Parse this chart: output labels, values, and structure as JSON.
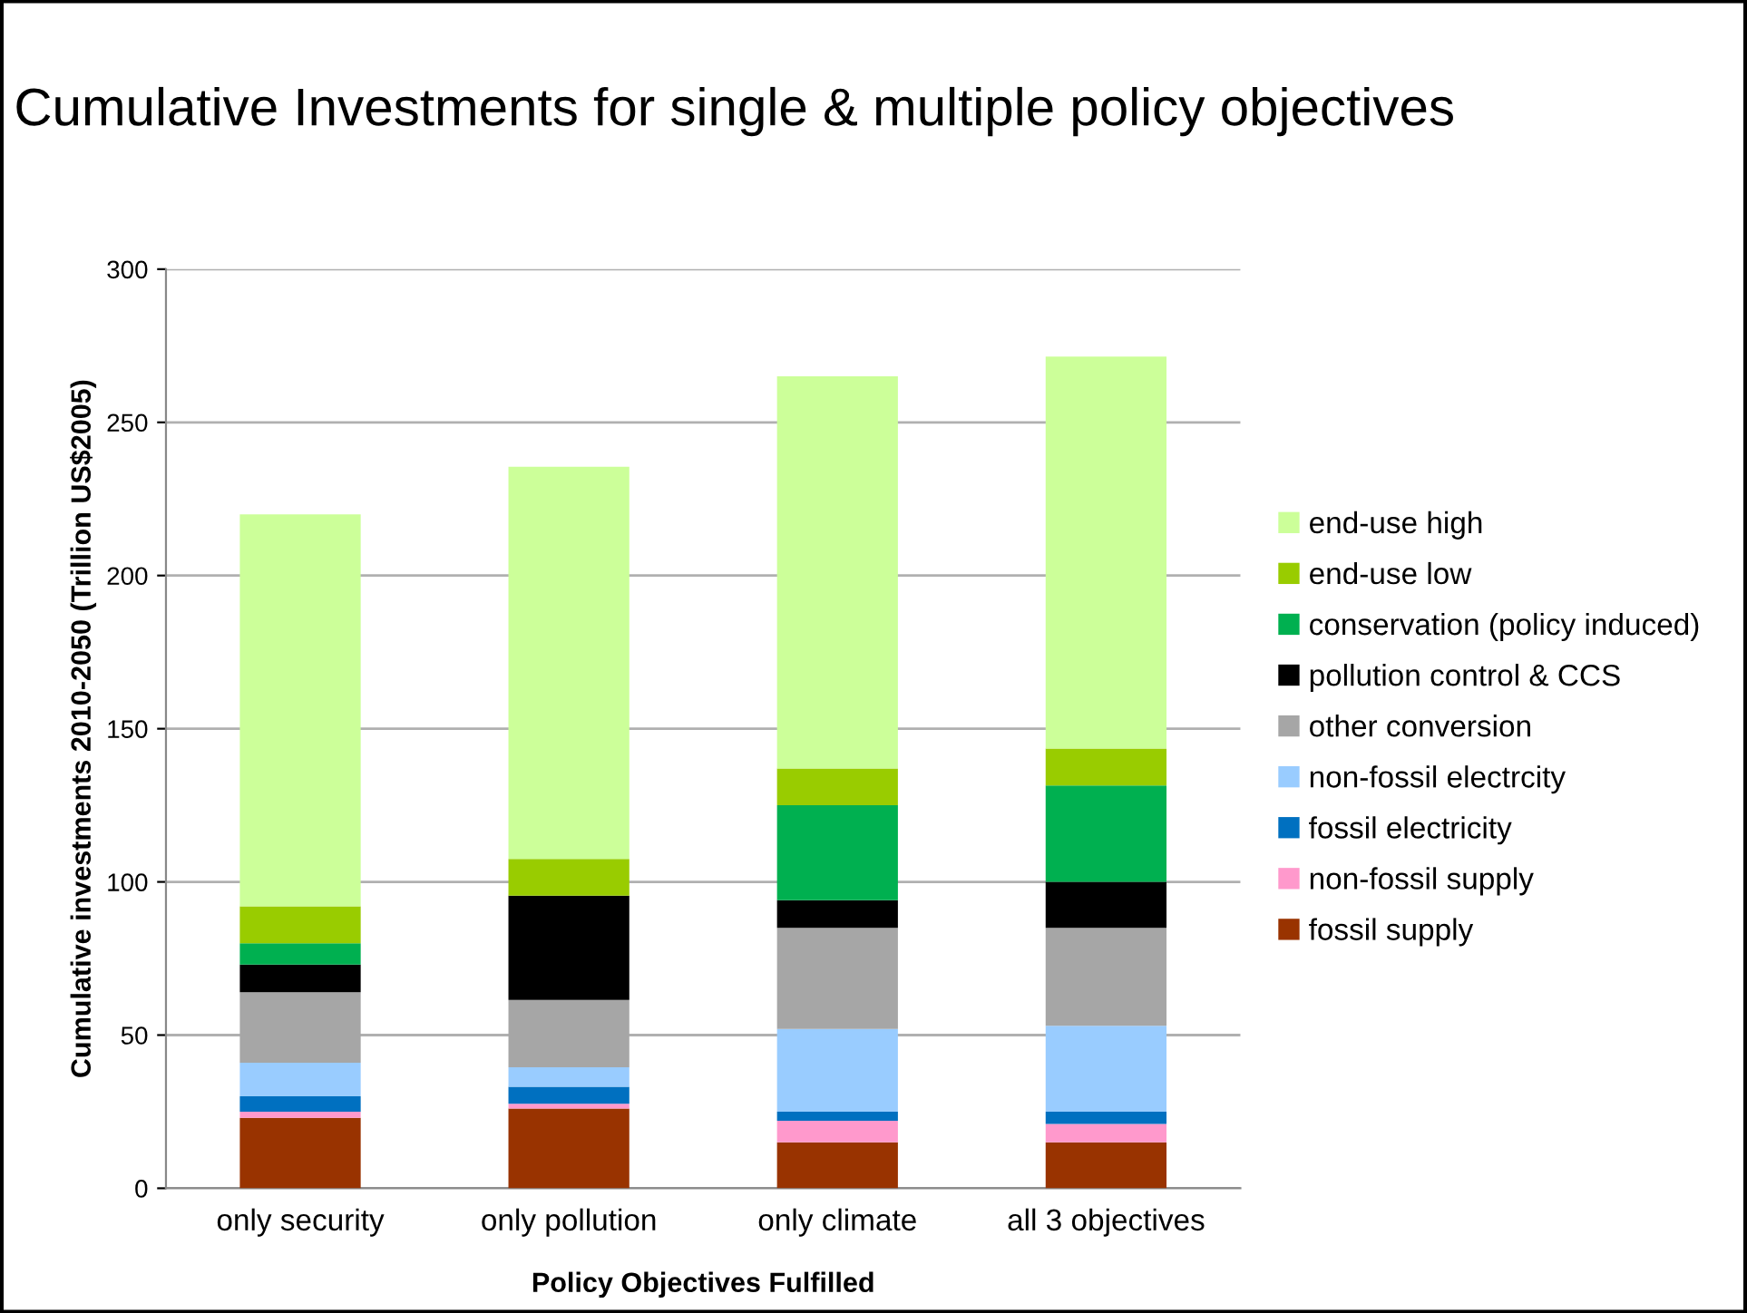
{
  "chart_data": {
    "type": "bar",
    "stacked": true,
    "title": "Cumulative Investments for single & multiple policy objectives",
    "xlabel": "Policy Objectives Fulfilled",
    "ylabel": "Cumulative investments 2010-2050 (Trillion US$2005)",
    "categories": [
      "only security",
      "only pollution",
      "only climate",
      "all 3 objectives"
    ],
    "series": [
      {
        "name": "fossil supply",
        "color": "#993300",
        "values": [
          23,
          26,
          15,
          15
        ]
      },
      {
        "name": "non-fossil supply",
        "color": "#ff99cc",
        "values": [
          2,
          1.6,
          7,
          6
        ]
      },
      {
        "name": "fossil electricity",
        "color": "#0070c0",
        "values": [
          5,
          5.5,
          3,
          4
        ]
      },
      {
        "name": "non-fossil electrcity",
        "color": "#99ccff",
        "values": [
          11,
          6.4,
          27,
          28
        ]
      },
      {
        "name": "other conversion",
        "color": "#a6a6a6",
        "values": [
          23,
          22,
          33,
          32
        ]
      },
      {
        "name": "pollution control & CCS",
        "color": "#000000",
        "values": [
          9,
          34,
          9,
          15
        ]
      },
      {
        "name": "conservation (policy induced)",
        "color": "#00b050",
        "values": [
          7,
          0,
          31,
          31.5
        ]
      },
      {
        "name": "end-use low",
        "color": "#99cc00",
        "values": [
          12,
          12,
          12,
          12
        ]
      },
      {
        "name": "end-use high",
        "color": "#ccff99",
        "values": [
          128,
          128,
          128,
          128
        ]
      }
    ],
    "ylim": [
      0,
      300
    ],
    "yticks": [
      0,
      50,
      100,
      150,
      200,
      250,
      300
    ],
    "grid": "y",
    "legend": "right"
  }
}
